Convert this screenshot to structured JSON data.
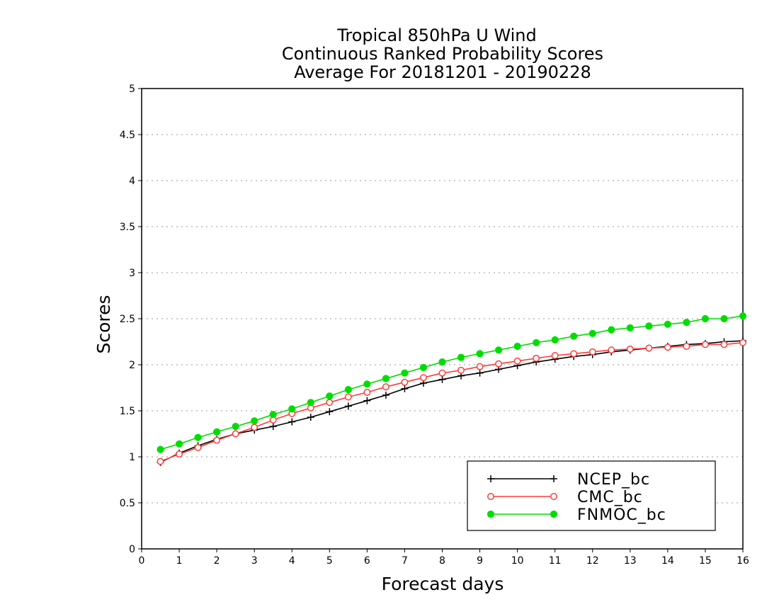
{
  "chart_data": {
    "type": "line",
    "title_lines": [
      "Tropical 850hPa U Wind",
      "Continuous Ranked Probability Scores",
      "Average For 20181201 - 20190228"
    ],
    "xlabel": "Forecast days",
    "ylabel": "Scores",
    "xlim": [
      0,
      16
    ],
    "ylim": [
      0,
      5
    ],
    "xticks": [
      0,
      1,
      2,
      3,
      4,
      5,
      6,
      7,
      8,
      9,
      10,
      11,
      12,
      13,
      14,
      15,
      16
    ],
    "yticks": [
      0,
      0.5,
      1,
      1.5,
      2,
      2.5,
      3,
      3.5,
      4,
      4.5,
      5
    ],
    "ytick_labels": [
      "0",
      "0.5",
      "1",
      "1.5",
      "2",
      "2.5",
      "3",
      "3.5",
      "4",
      "4.5",
      "5"
    ],
    "grid": "dotted horizontal",
    "legend_position": "bottom-right",
    "x": [
      0.5,
      1,
      1.5,
      2,
      2.5,
      3,
      3.5,
      4,
      4.5,
      5,
      5.5,
      6,
      6.5,
      7,
      7.5,
      8,
      8.5,
      9,
      9.5,
      10,
      10.5,
      11,
      11.5,
      12,
      12.5,
      13,
      13.5,
      14,
      14.5,
      15,
      15.5,
      16
    ],
    "series": [
      {
        "name": "NCEP_bc",
        "color": "#000000",
        "marker": "plus",
        "values": [
          0.94,
          1.04,
          1.12,
          1.19,
          1.25,
          1.29,
          1.33,
          1.38,
          1.43,
          1.49,
          1.55,
          1.61,
          1.67,
          1.74,
          1.8,
          1.84,
          1.88,
          1.91,
          1.95,
          1.99,
          2.03,
          2.06,
          2.09,
          2.11,
          2.14,
          2.16,
          2.18,
          2.2,
          2.22,
          2.23,
          2.25,
          2.26
        ]
      },
      {
        "name": "CMC_bc",
        "color": "#ff3c3c",
        "marker": "open-circle",
        "values": [
          0.95,
          1.03,
          1.1,
          1.18,
          1.25,
          1.32,
          1.4,
          1.47,
          1.53,
          1.59,
          1.65,
          1.7,
          1.76,
          1.81,
          1.86,
          1.91,
          1.94,
          1.98,
          2.01,
          2.04,
          2.07,
          2.1,
          2.12,
          2.14,
          2.16,
          2.17,
          2.18,
          2.19,
          2.2,
          2.22,
          2.22,
          2.24
        ]
      },
      {
        "name": "FNMOC_bc",
        "color": "#00dd00",
        "marker": "filled-circle",
        "values": [
          1.08,
          1.14,
          1.21,
          1.27,
          1.33,
          1.39,
          1.46,
          1.52,
          1.59,
          1.66,
          1.73,
          1.79,
          1.85,
          1.91,
          1.97,
          2.03,
          2.08,
          2.12,
          2.16,
          2.2,
          2.24,
          2.27,
          2.31,
          2.34,
          2.38,
          2.4,
          2.42,
          2.44,
          2.46,
          2.5,
          2.5,
          2.53
        ]
      }
    ]
  }
}
